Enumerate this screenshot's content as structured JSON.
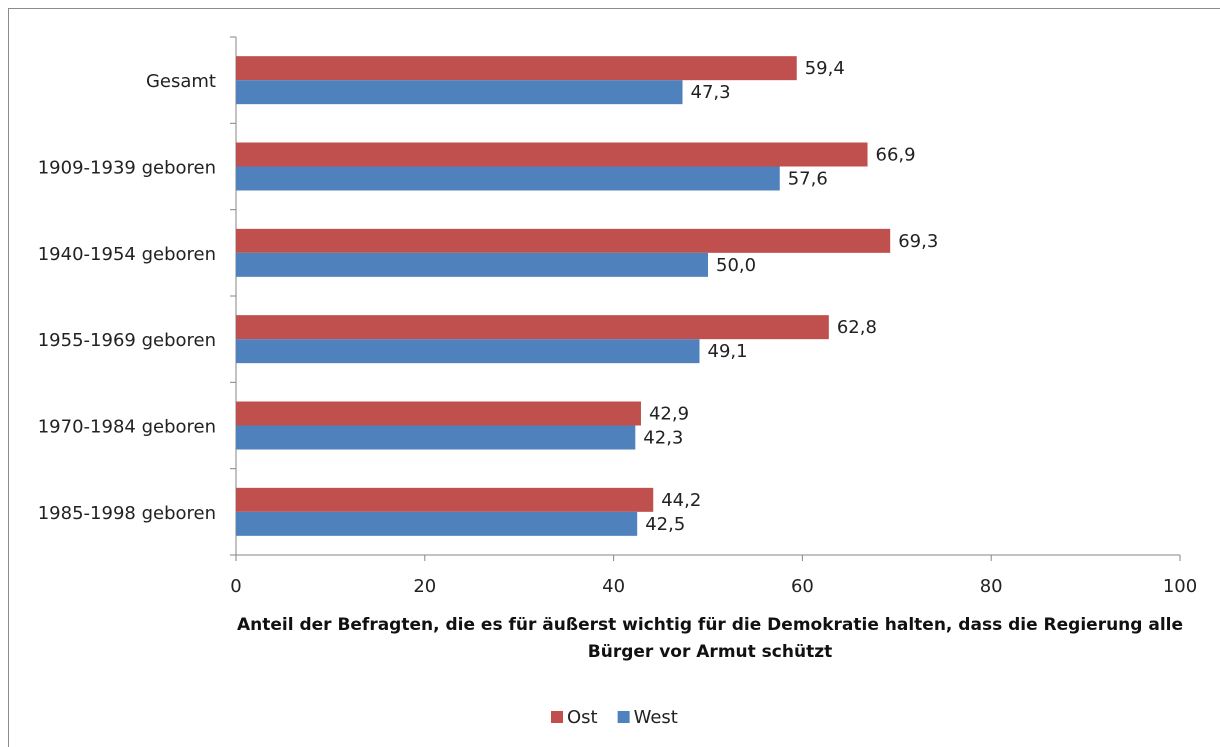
{
  "chart_data": {
    "type": "bar",
    "orientation": "horizontal",
    "xlabel": "Anteil der Befragten, die es für äußerst wichtig für die Demokratie halten, dass die Regierung alle Bürger vor Armut schützt",
    "categories": [
      "Gesamt",
      "1909-1939 geboren",
      "1940-1954 geboren",
      "1955-1969 geboren",
      "1970-1984 geboren",
      "1985-1998 geboren"
    ],
    "series": [
      {
        "name": "Ost",
        "color": "#c0504d",
        "values": [
          59.4,
          66.9,
          69.3,
          62.8,
          42.9,
          44.2
        ],
        "value_labels": [
          "59,4",
          "66,9",
          "69,3",
          "62,8",
          "42,9",
          "44,2"
        ]
      },
      {
        "name": "West",
        "color": "#4f81bd",
        "values": [
          47.3,
          57.6,
          50.0,
          49.1,
          42.3,
          42.5
        ],
        "value_labels": [
          "47,3",
          "57,6",
          "50,0",
          "49,1",
          "42,3",
          "42,5"
        ]
      }
    ],
    "xlim": [
      0,
      100
    ],
    "xticks": [
      0,
      20,
      40,
      60,
      80,
      100
    ],
    "legend": "bottom"
  }
}
